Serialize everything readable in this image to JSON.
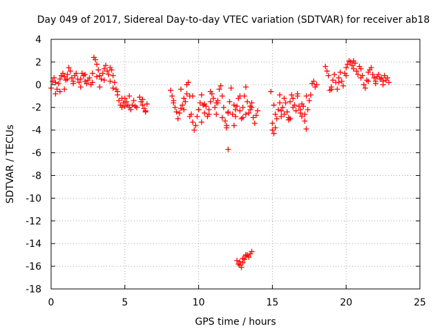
{
  "chart_data": {
    "type": "scatter",
    "title": "Day 049 of 2017, Sidereal Day-to-day VTEC variation (SDTVAR) for receiver ab18",
    "xlabel": "GPS time / hours",
    "ylabel": "SDTVAR / TECUs",
    "xlim": [
      0,
      25
    ],
    "ylim": [
      -18,
      4
    ],
    "xticks": [
      "0",
      "5",
      "10",
      "15",
      "20",
      "25"
    ],
    "yticks": [
      "4",
      "2",
      "0",
      "-2",
      "-4",
      "-6",
      "-8",
      "-10",
      "-12",
      "-14",
      "-16",
      "-18"
    ],
    "grid": true,
    "marker": "plus",
    "color": "#ff0000",
    "series": [
      {
        "name": "SDTVAR",
        "x": [
          0.0,
          0.1,
          0.2,
          0.3,
          0.4,
          0.5,
          0.6,
          0.7,
          0.8,
          0.9,
          1.0,
          1.1,
          1.2,
          1.3,
          1.4,
          1.5,
          1.6,
          1.7,
          1.8,
          1.9,
          2.0,
          2.1,
          2.2,
          2.3,
          2.4,
          2.5,
          2.6,
          2.7,
          2.8,
          2.9,
          3.0,
          3.1,
          3.2,
          3.3,
          3.4,
          3.5,
          3.6,
          3.7,
          3.8,
          3.9,
          4.0,
          4.1,
          4.2,
          4.3,
          4.4,
          4.5,
          4.6,
          4.7,
          4.8,
          4.9,
          5.0,
          5.1,
          5.2,
          5.3,
          5.4,
          5.5,
          5.6,
          5.7,
          5.8,
          6.0,
          6.1,
          6.2,
          6.3,
          6.4,
          6.5,
          0.3,
          0.6,
          0.9,
          1.1,
          1.5,
          2.0,
          2.3,
          2.8,
          3.1,
          3.3,
          3.6,
          4.0,
          4.2,
          4.5,
          4.8,
          5.0,
          5.3,
          6.2,
          6.4,
          8.1,
          8.2,
          8.3,
          8.4,
          8.5,
          8.6,
          8.7,
          8.8,
          8.9,
          9.0,
          9.1,
          9.2,
          9.3,
          9.4,
          9.5,
          9.6,
          9.7,
          9.8,
          9.9,
          10.0,
          10.1,
          10.2,
          10.3,
          10.4,
          10.5,
          10.6,
          10.7,
          10.8,
          10.9,
          11.0,
          11.1,
          11.2,
          11.3,
          11.4,
          11.5,
          11.6,
          11.7,
          11.8,
          11.9,
          12.0,
          12.1,
          12.2,
          12.3,
          12.4,
          12.5,
          12.6,
          12.7,
          12.8,
          12.9,
          13.0,
          13.1,
          13.2,
          13.3,
          13.4,
          13.5,
          13.6,
          13.7,
          13.8,
          13.9,
          14.0,
          8.3,
          8.8,
          9.2,
          9.6,
          10.0,
          10.4,
          10.8,
          11.2,
          11.6,
          12.0,
          12.4,
          12.8,
          13.2,
          13.6,
          9.0,
          9.4,
          10.2,
          10.7,
          11.3,
          11.9,
          12.5,
          13.0,
          13.5,
          12.0,
          12.6,
          12.7,
          12.8,
          12.9,
          13.0,
          13.1,
          13.2,
          13.3,
          13.4,
          13.5,
          13.6,
          12.8,
          13.0,
          13.2,
          14.9,
          15.0,
          15.1,
          15.2,
          15.3,
          15.4,
          15.5,
          15.6,
          15.7,
          15.8,
          15.9,
          16.0,
          16.1,
          16.2,
          16.3,
          16.4,
          16.5,
          16.6,
          16.7,
          16.8,
          16.9,
          17.0,
          17.1,
          17.2,
          17.3,
          17.4,
          17.5,
          17.6,
          17.7,
          17.8,
          17.9,
          18.0,
          15.0,
          15.2,
          15.5,
          15.8,
          16.1,
          16.4,
          16.7,
          17.0,
          17.3,
          15.1,
          15.6,
          16.2,
          16.9,
          17.2,
          18.6,
          18.7,
          18.8,
          18.9,
          19.0,
          19.1,
          19.2,
          19.3,
          19.4,
          19.5,
          19.6,
          19.7,
          19.8,
          19.9,
          20.0,
          20.1,
          20.2,
          20.3,
          20.4,
          20.5,
          20.6,
          20.7,
          20.8,
          20.9,
          21.0,
          21.1,
          21.2,
          21.3,
          21.4,
          21.5,
          21.6,
          21.7,
          21.8,
          21.9,
          22.0,
          22.1,
          22.2,
          22.3,
          22.4,
          22.5,
          22.6,
          22.7,
          22.8,
          22.9,
          19.0,
          19.5,
          20.0,
          20.5,
          21.0,
          21.5,
          22.0,
          22.5
        ],
        "y": [
          -0.3,
          0.3,
          0.6,
          0.2,
          -0.4,
          0.1,
          0.5,
          0.8,
          1.0,
          0.7,
          0.4,
          0.9,
          1.5,
          1.2,
          0.6,
          0.3,
          0.8,
          1.0,
          0.5,
          0.2,
          0.5,
          1.0,
          0.8,
          0.3,
          0.1,
          0.4,
          0.6,
          0.0,
          1.0,
          2.4,
          2.2,
          1.8,
          1.3,
          0.8,
          0.5,
          1.0,
          1.4,
          1.7,
          1.2,
          0.9,
          1.5,
          1.3,
          0.8,
          0.2,
          -0.4,
          -0.9,
          -1.4,
          -1.8,
          -2.0,
          -1.6,
          -1.2,
          -1.5,
          -1.8,
          -2.0,
          -2.2,
          -1.8,
          -1.4,
          -1.9,
          -2.0,
          -1.1,
          -1.5,
          -1.8,
          -2.1,
          -2.3,
          -1.7,
          -0.8,
          -0.6,
          -0.4,
          0.5,
          0.1,
          -0.2,
          0.9,
          0.2,
          0.7,
          -0.2,
          0.4,
          0.3,
          -0.3,
          -0.6,
          -1.2,
          -1.9,
          -1.0,
          -1.3,
          -2.4,
          -0.5,
          -1.0,
          -1.6,
          -2.0,
          -2.4,
          -3.0,
          -2.5,
          -2.1,
          -1.8,
          -2.2,
          -1.5,
          -0.8,
          0.2,
          -1.0,
          -2.6,
          -3.3,
          -4.0,
          -3.6,
          -2.8,
          -2.2,
          -1.6,
          -0.9,
          -1.8,
          -2.5,
          -1.9,
          -2.8,
          -2.2,
          -1.5,
          -0.8,
          -1.2,
          -2.0,
          -2.6,
          -1.4,
          -0.4,
          -0.1,
          -1.0,
          -2.0,
          -3.2,
          -3.8,
          -2.5,
          -1.5,
          -0.3,
          -2.6,
          -3.6,
          -2.8,
          -1.9,
          -1.2,
          -2.3,
          -3.0,
          -2.0,
          -1.0,
          -0.2,
          -1.5,
          -2.5,
          -2.2,
          -1.6,
          -2.9,
          -3.4,
          -2.7,
          -2.3,
          -1.4,
          -0.4,
          0.0,
          -1.0,
          -2.2,
          -1.7,
          -0.6,
          -1.6,
          -2.9,
          -2.4,
          -1.8,
          -1.0,
          -2.6,
          -2.0,
          -1.2,
          -2.8,
          -3.3,
          -2.6,
          -1.6,
          -3.6,
          -2.2,
          -2.9,
          -1.9,
          -5.7,
          -15.5,
          -15.8,
          -15.9,
          -16.1,
          -15.7,
          -15.4,
          -15.1,
          -15.0,
          -15.2,
          -14.9,
          -14.7,
          -15.6,
          -15.3,
          -15.0,
          -0.6,
          -3.4,
          -4.3,
          -3.8,
          -3.0,
          -2.2,
          -1.6,
          -2.8,
          -2.0,
          -1.2,
          -1.6,
          -2.4,
          -2.9,
          -1.5,
          -0.9,
          -1.2,
          -1.8,
          -2.3,
          -0.8,
          -1.9,
          -2.5,
          -1.7,
          -1.9,
          -3.2,
          -3.9,
          -2.2,
          -1.4,
          -0.9,
          0.1,
          0.3,
          -0.2,
          0.0,
          -4.0,
          -2.6,
          -0.9,
          -2.6,
          -3.1,
          -2.0,
          -1.0,
          -2.8,
          -1.0,
          -1.8,
          -2.3,
          -3.0,
          -2.2,
          -2.6,
          1.6,
          1.2,
          0.8,
          -0.5,
          -0.2,
          0.4,
          0.9,
          0.2,
          -0.4,
          0.6,
          1.1,
          0.3,
          -0.1,
          1.0,
          1.5,
          1.8,
          2.1,
          2.0,
          1.7,
          2.1,
          1.9,
          1.2,
          0.9,
          1.6,
          1.4,
          0.8,
          0.0,
          -0.3,
          0.4,
          1.1,
          1.3,
          1.5,
          0.9,
          0.6,
          0.3,
          0.7,
          0.9,
          0.5,
          0.6,
          0.3,
          0.8,
          0.4,
          0.6,
          0.2,
          -0.4,
          0.2,
          0.8,
          1.4,
          0.6,
          0.3,
          0.1,
          0.0
        ]
      }
    ]
  }
}
